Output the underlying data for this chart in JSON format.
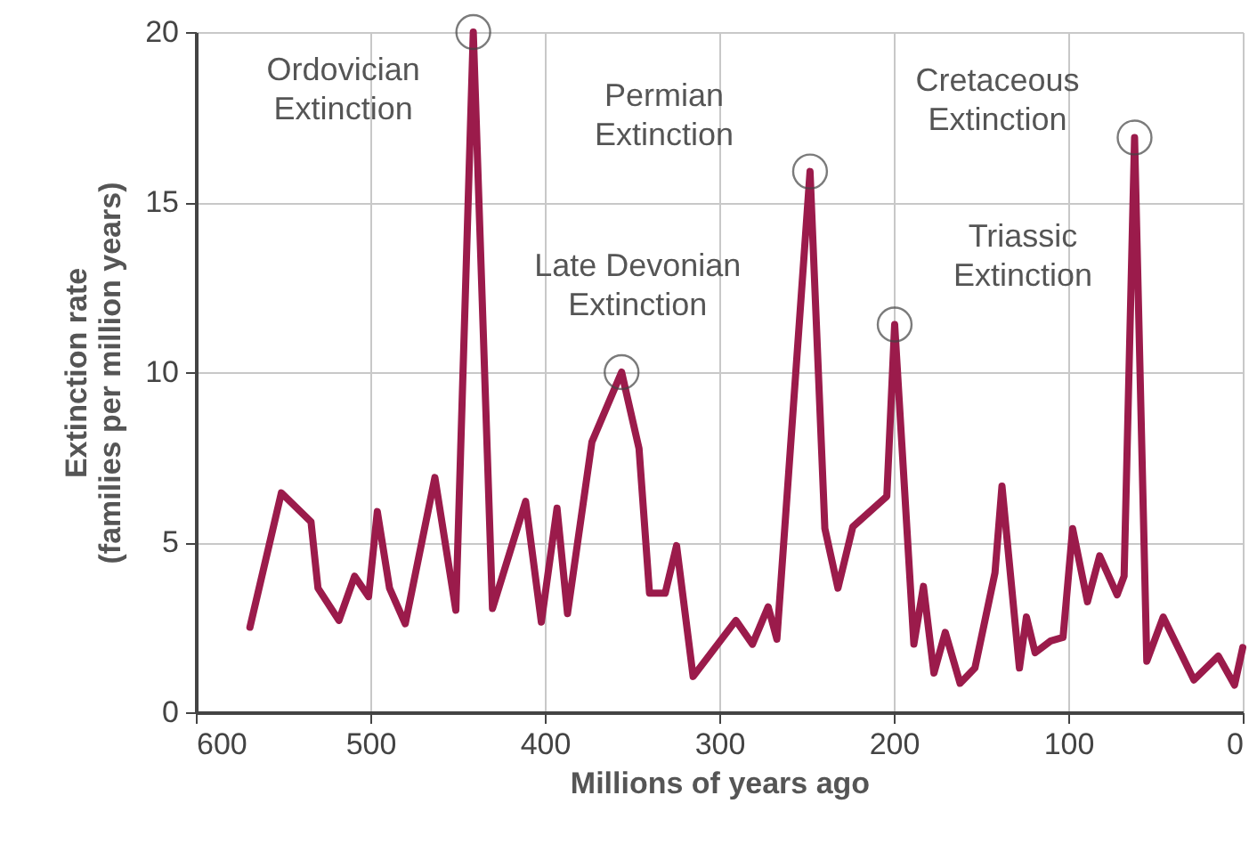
{
  "chart_data": {
    "type": "line",
    "xlabel": "Millions of years ago",
    "ylabel": "Extinction rate (families per million years)",
    "xlim": [
      600,
      0
    ],
    "xticks": [
      600,
      500,
      400,
      300,
      200,
      100,
      0
    ],
    "ylim": [
      0,
      20
    ],
    "yticks": [
      0,
      5,
      10,
      15,
      20
    ],
    "grid": true,
    "marker": "none",
    "line_style": "solid",
    "x": [
      569,
      551,
      534,
      530,
      518,
      509,
      501,
      496,
      489,
      480,
      463,
      451,
      441,
      430,
      411,
      402,
      393,
      387,
      373,
      356,
      346,
      340,
      331,
      324.5,
      315,
      290.5,
      281,
      272,
      267,
      248,
      239.5,
      232,
      223.5,
      204,
      199.5,
      188.5,
      183,
      177,
      170.5,
      162,
      153.5,
      142,
      138,
      128,
      124,
      119,
      110,
      103,
      97.5,
      89,
      82,
      72,
      68,
      62,
      55,
      45.6,
      28,
      14,
      4.7,
      0
    ],
    "series": [
      {
        "color": "#9b1b4b",
        "values": [
          2.5,
          6.45,
          5.6,
          3.65,
          2.7,
          4.0,
          3.4,
          5.9,
          3.65,
          2.6,
          6.9,
          3.0,
          20,
          3.05,
          6.2,
          2.65,
          6.0,
          2.9,
          7.95,
          10.0,
          7.75,
          3.5,
          3.5,
          4.9,
          1.05,
          2.7,
          2.0,
          3.1,
          2.15,
          15.9,
          5.4,
          3.65,
          5.45,
          6.35,
          11.4,
          2.0,
          3.7,
          1.15,
          2.35,
          0.85,
          1.3,
          4.1,
          6.65,
          1.3,
          2.8,
          1.75,
          2.1,
          2.2,
          5.4,
          3.25,
          4.6,
          3.45,
          4.0,
          16.9,
          1.5,
          2.8,
          0.95,
          1.65,
          0.8,
          1.9
        ]
      }
    ],
    "annotations": [
      {
        "text": "Ordovician Extinction",
        "x": 441,
        "y": 20
      },
      {
        "text": "Late Devonian Extinction",
        "x": 356,
        "y": 10.0
      },
      {
        "text": "Permian Extinction",
        "x": 248,
        "y": 15.9
      },
      {
        "text": "Triassic Extinction",
        "x": 199.5,
        "y": 11.4
      },
      {
        "text": "Cretaceous Extinction",
        "x": 62,
        "y": 16.9
      }
    ]
  }
}
